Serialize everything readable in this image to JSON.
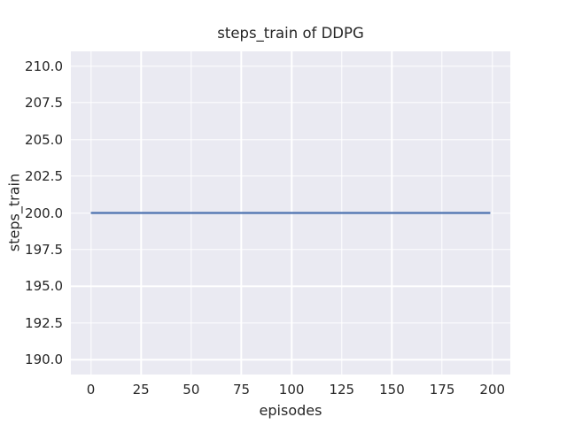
{
  "figure": {
    "background": "#ffffff"
  },
  "chart_data": {
    "type": "line",
    "title": "steps_train of DDPG",
    "xlabel": "episodes",
    "ylabel": "steps_train",
    "x_ticks": [
      0,
      25,
      50,
      75,
      100,
      125,
      150,
      175,
      200
    ],
    "x_tick_labels": [
      "0",
      "25",
      "50",
      "75",
      "100",
      "125",
      "150",
      "175",
      "200"
    ],
    "y_ticks": [
      190,
      192.5,
      195,
      197.5,
      200,
      202.5,
      205,
      207.5,
      210
    ],
    "y_tick_labels": [
      "190.0",
      "192.5",
      "195.0",
      "197.5",
      "200.0",
      "202.5",
      "205.0",
      "207.5",
      "210.0"
    ],
    "xlim": [
      -9.95,
      208.95
    ],
    "ylim": [
      189,
      211
    ],
    "grid": true,
    "legend": false,
    "plot_background": "#eaeaf2",
    "grid_color": "#ffffff",
    "text_color": "#262626",
    "line_width": 2.2,
    "series": [
      {
        "name": "steps_train",
        "color": "#4c72b0",
        "x": [
          0,
          199
        ],
        "y": [
          200,
          200
        ],
        "note": "constant value 200 across all episodes 0-199"
      }
    ]
  }
}
